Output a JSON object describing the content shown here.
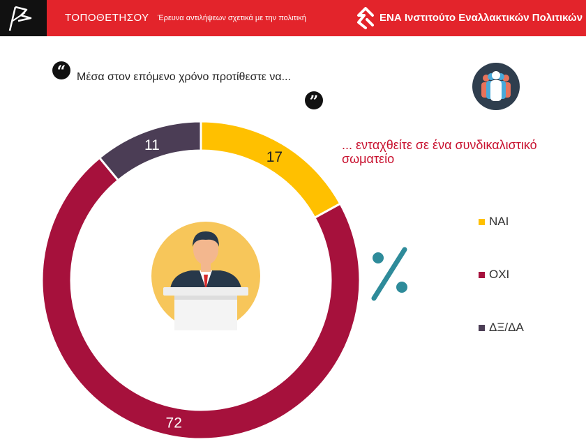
{
  "header": {
    "brand": "ΤΟΠΟΘΕΤΗΣΟΥ",
    "subtitle": "Έρευνα αντιλήψεων σχετικά με την πολιτική",
    "institute": "ΕΝΑ Ινστιτούτο Εναλλακτικών Πολιτικών"
  },
  "question": {
    "text": "Μέσα στον επόμενο χρόνο προτίθεστε να...",
    "continuation": "... ενταχθείτε σε ένα συνδικαλιστικό σωματείο"
  },
  "percent_symbol": "%",
  "colors": {
    "header_red": "#e3242b",
    "yes": "#ffc000",
    "no": "#a6113c",
    "dk": "#4b3d55",
    "accent_teal": "#2e8b9a"
  },
  "chart_data": {
    "type": "pie",
    "donut": true,
    "categories": [
      "ΝΑΙ",
      "ΟΧΙ",
      "ΔΞ/ΔΑ"
    ],
    "values": [
      17,
      72,
      11
    ],
    "colors": [
      "#ffc000",
      "#a6113c",
      "#4b3d55"
    ],
    "legend_position": "right"
  }
}
